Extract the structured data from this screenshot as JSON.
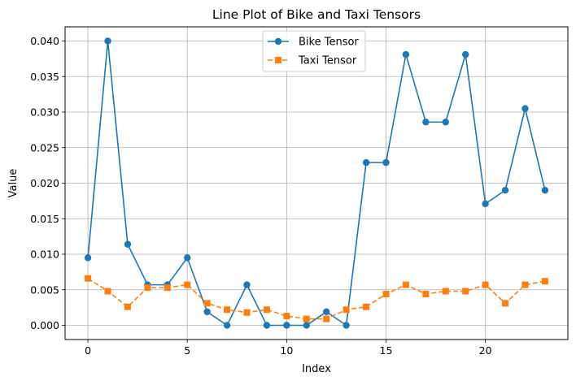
{
  "chart_data": {
    "type": "line",
    "title": "Line Plot of Bike and Taxi Tensors",
    "xlabel": "Index",
    "ylabel": "Value",
    "xlim": [
      -1.15,
      24.15
    ],
    "ylim": [
      -0.002,
      0.042
    ],
    "grid": true,
    "legend_position": "upper-center",
    "x_ticks": [
      0,
      5,
      10,
      15,
      20
    ],
    "x_tick_labels": [
      "0",
      "5",
      "10",
      "15",
      "20"
    ],
    "y_ticks": [
      0.0,
      0.005,
      0.01,
      0.015,
      0.02,
      0.025,
      0.03,
      0.035,
      0.04
    ],
    "y_tick_labels": [
      "0.000",
      "0.005",
      "0.010",
      "0.015",
      "0.020",
      "0.025",
      "0.030",
      "0.035",
      "0.040"
    ],
    "x": [
      0,
      1,
      2,
      3,
      4,
      5,
      6,
      7,
      8,
      9,
      10,
      11,
      12,
      13,
      14,
      15,
      16,
      17,
      18,
      19,
      20,
      21,
      22,
      23
    ],
    "series": [
      {
        "name": "Bike Tensor",
        "color": "#1f77b4",
        "marker": "circle",
        "line_style": "solid",
        "values": [
          0.0095,
          0.04,
          0.0114,
          0.0057,
          0.0057,
          0.0095,
          0.0019,
          0.0,
          0.0057,
          0.0,
          0.0,
          0.0,
          0.0019,
          0.0,
          0.0229,
          0.0229,
          0.0381,
          0.0286,
          0.0286,
          0.0381,
          0.0171,
          0.019,
          0.0305,
          0.019
        ]
      },
      {
        "name": "Taxi Tensor",
        "color": "#ff7f0e",
        "marker": "square",
        "line_style": "dashed",
        "values": [
          0.0066,
          0.0048,
          0.0026,
          0.0053,
          0.0053,
          0.0057,
          0.0031,
          0.0022,
          0.0018,
          0.0022,
          0.0013,
          0.0009,
          0.0009,
          0.0022,
          0.0026,
          0.0044,
          0.0057,
          0.0044,
          0.0048,
          0.0048,
          0.0057,
          0.0031,
          0.0057,
          0.0062
        ]
      }
    ]
  }
}
